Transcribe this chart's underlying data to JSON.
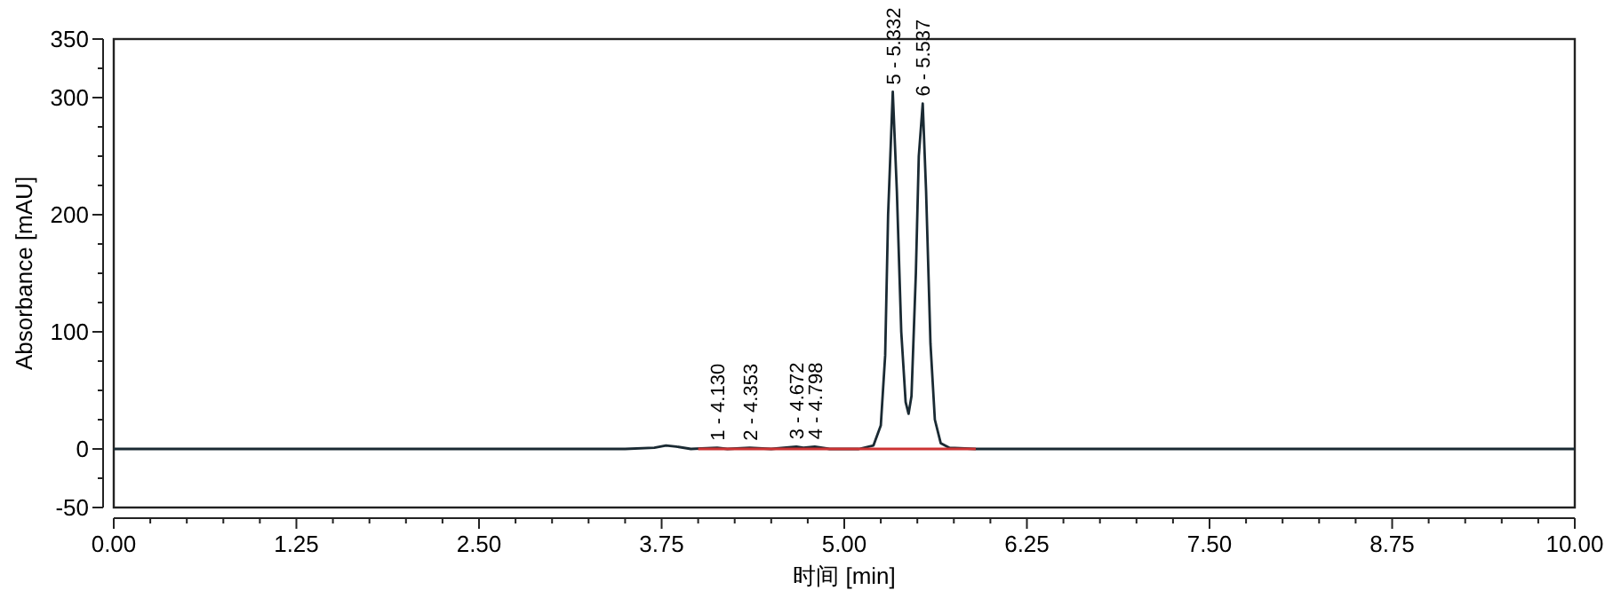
{
  "chart_data": {
    "type": "line",
    "xlabel": "时间 [min]",
    "ylabel": "Absorbance [mAU]",
    "xlim": [
      0,
      10
    ],
    "xticks": [
      {
        "value": 0,
        "label": "0.00"
      },
      {
        "value": 0.25,
        "label": null
      },
      {
        "value": 0.5,
        "label": null
      },
      {
        "value": 0.75,
        "label": null
      },
      {
        "value": 1,
        "label": null
      },
      {
        "value": 1.25,
        "label": "1.25"
      },
      {
        "value": 1.5,
        "label": null
      },
      {
        "value": 1.75,
        "label": null
      },
      {
        "value": 2,
        "label": null
      },
      {
        "value": 2.25,
        "label": null
      },
      {
        "value": 2.5,
        "label": "2.50"
      },
      {
        "value": 2.75,
        "label": null
      },
      {
        "value": 3,
        "label": null
      },
      {
        "value": 3.25,
        "label": null
      },
      {
        "value": 3.5,
        "label": null
      },
      {
        "value": 3.75,
        "label": "3.75"
      },
      {
        "value": 4,
        "label": null
      },
      {
        "value": 4.25,
        "label": null
      },
      {
        "value": 4.5,
        "label": null
      },
      {
        "value": 4.75,
        "label": null
      },
      {
        "value": 5,
        "label": "5.00"
      },
      {
        "value": 5.25,
        "label": null
      },
      {
        "value": 5.5,
        "label": null
      },
      {
        "value": 5.75,
        "label": null
      },
      {
        "value": 6,
        "label": null
      },
      {
        "value": 6.25,
        "label": "6.25"
      },
      {
        "value": 6.5,
        "label": null
      },
      {
        "value": 6.75,
        "label": null
      },
      {
        "value": 7,
        "label": null
      },
      {
        "value": 7.25,
        "label": null
      },
      {
        "value": 7.5,
        "label": "7.50"
      },
      {
        "value": 7.75,
        "label": null
      },
      {
        "value": 8,
        "label": null
      },
      {
        "value": 8.25,
        "label": null
      },
      {
        "value": 8.5,
        "label": null
      },
      {
        "value": 8.75,
        "label": "8.75"
      },
      {
        "value": 9,
        "label": null
      },
      {
        "value": 9.25,
        "label": null
      },
      {
        "value": 9.5,
        "label": null
      },
      {
        "value": 9.75,
        "label": null
      },
      {
        "value": 10,
        "label": "10.00"
      }
    ],
    "ylim": [
      -50,
      350
    ],
    "yticks": [
      -50,
      {
        "value": -25,
        "label": null
      },
      0,
      {
        "value": 25,
        "label": null
      },
      {
        "value": 50,
        "label": null
      },
      {
        "value": 75,
        "label": null
      },
      100,
      {
        "value": 125,
        "label": null
      },
      {
        "value": 150,
        "label": null
      },
      {
        "value": 175,
        "label": null
      },
      200,
      {
        "value": 225,
        "label": null
      },
      {
        "value": 250,
        "label": null
      },
      {
        "value": 275,
        "label": null
      },
      300,
      {
        "value": 325,
        "label": null
      },
      350
    ],
    "grid": false,
    "marker": "none",
    "line_style": "solid",
    "series": [
      {
        "color": "#1a2a33",
        "x": [
          0,
          3.5,
          3.7,
          3.78,
          3.85,
          3.95,
          4.13,
          4.2,
          4.353,
          4.5,
          4.672,
          4.72,
          4.798,
          4.9,
          5.1,
          5.2,
          5.25,
          5.28,
          5.3,
          5.332,
          5.36,
          5.39,
          5.42,
          5.44,
          5.46,
          5.49,
          5.51,
          5.537,
          5.56,
          5.59,
          5.62,
          5.66,
          5.72,
          5.9,
          7,
          10
        ],
        "values": [
          0,
          0,
          1,
          3,
          2,
          0,
          1,
          0,
          1,
          0,
          2,
          1,
          2,
          0,
          0,
          3,
          20,
          80,
          200,
          305,
          220,
          100,
          40,
          30,
          45,
          150,
          250,
          295,
          220,
          90,
          25,
          5,
          1,
          0,
          0,
          0
        ]
      },
      {
        "color": "#cc3333",
        "x": [
          4.0,
          5.9
        ],
        "values": [
          0,
          0
        ]
      }
    ],
    "annotations": [
      {
        "text": "1 - 4.130",
        "x": 4.13,
        "y": 1
      },
      {
        "text": "2 - 4.353",
        "x": 4.353,
        "y": 1
      },
      {
        "text": "3 - 4.672",
        "x": 4.672,
        "y": 2
      },
      {
        "text": "4 - 4.798",
        "x": 4.798,
        "y": 2
      },
      {
        "text": "5 - 5.332",
        "x": 5.332,
        "y": 305
      },
      {
        "text": "6 - 5.537",
        "x": 5.537,
        "y": 295
      }
    ]
  }
}
